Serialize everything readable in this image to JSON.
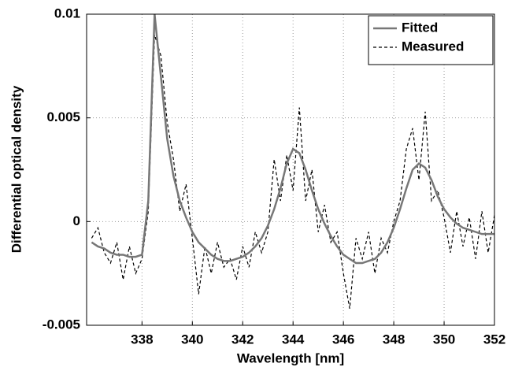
{
  "chart_data": {
    "type": "line",
    "xlabel": "Wavelength [nm]",
    "ylabel": "Differential optical density",
    "x": [
      336,
      336.25,
      336.5,
      336.75,
      337,
      337.25,
      337.5,
      337.75,
      338,
      338.25,
      338.5,
      338.75,
      339,
      339.25,
      339.5,
      339.75,
      340,
      340.25,
      340.5,
      340.75,
      341,
      341.25,
      341.5,
      341.75,
      342,
      342.25,
      342.5,
      342.75,
      343,
      343.25,
      343.5,
      343.75,
      344,
      344.25,
      344.5,
      344.75,
      345,
      345.25,
      345.5,
      345.75,
      346,
      346.25,
      346.5,
      346.75,
      347,
      347.25,
      347.5,
      347.75,
      348,
      348.25,
      348.5,
      348.75,
      349,
      349.25,
      349.5,
      349.75,
      350,
      350.25,
      350.5,
      350.75,
      351,
      351.25,
      351.5,
      351.75,
      352
    ],
    "series": [
      {
        "name": "Fitted",
        "color": "#777777",
        "linestyle": "solid",
        "values": [
          -0.001,
          -0.0012,
          -0.0013,
          -0.0015,
          -0.0016,
          -0.0016,
          -0.0017,
          -0.0017,
          -0.0016,
          0.001,
          0.01,
          0.007,
          0.004,
          0.0022,
          0.001,
          0.0002,
          -0.0005,
          -0.001,
          -0.0013,
          -0.0016,
          -0.0018,
          -0.0019,
          -0.0019,
          -0.0018,
          -0.0017,
          -0.0015,
          -0.0012,
          -0.0008,
          -0.0002,
          0.0006,
          0.0016,
          0.0028,
          0.0035,
          0.0033,
          0.0025,
          0.0015,
          0.0006,
          -0.0001,
          -0.0007,
          -0.0012,
          -0.0016,
          -0.0018,
          -0.002,
          -0.002,
          -0.0019,
          -0.0018,
          -0.0015,
          -0.001,
          -0.0003,
          0.0006,
          0.0016,
          0.0025,
          0.0028,
          0.0026,
          0.002,
          0.0012,
          0.0006,
          0.0002,
          -0.0001,
          -0.0003,
          -0.0004,
          -0.0005,
          -0.0006,
          -0.0006,
          -0.0006
        ]
      },
      {
        "name": "Measured",
        "color": "#000000",
        "linestyle": "dashed",
        "values": [
          -0.0008,
          -0.0003,
          -0.0015,
          -0.002,
          -0.001,
          -0.0028,
          -0.0012,
          -0.0025,
          -0.0018,
          0.0005,
          0.009,
          0.008,
          0.0048,
          0.003,
          0.0005,
          0.0018,
          -0.0008,
          -0.0035,
          -0.0012,
          -0.0025,
          -0.001,
          -0.0022,
          -0.0018,
          -0.0028,
          -0.0012,
          -0.0022,
          -0.0005,
          -0.0015,
          -0.0005,
          0.003,
          0.001,
          0.0032,
          0.0015,
          0.0055,
          0.001,
          0.0025,
          -0.0005,
          0.0008,
          -0.001,
          -0.0005,
          -0.0025,
          -0.0042,
          -0.0008,
          -0.0018,
          -0.0005,
          -0.0025,
          -0.0008,
          -0.0015,
          0.0,
          0.001,
          0.0035,
          0.0045,
          0.002,
          0.0053,
          0.001,
          0.0015,
          0.0002,
          -0.0015,
          0.0005,
          -0.0012,
          0.0002,
          -0.0018,
          0.0005,
          -0.0015,
          0.0003
        ]
      }
    ],
    "xlim": [
      335.8,
      352
    ],
    "xticks": [
      338,
      340,
      342,
      344,
      346,
      348,
      350,
      352
    ],
    "ylim": [
      -0.005,
      0.01
    ],
    "yticks": [
      -0.005,
      0,
      0.005,
      0.01
    ],
    "grid": true,
    "legend": "upper right"
  }
}
